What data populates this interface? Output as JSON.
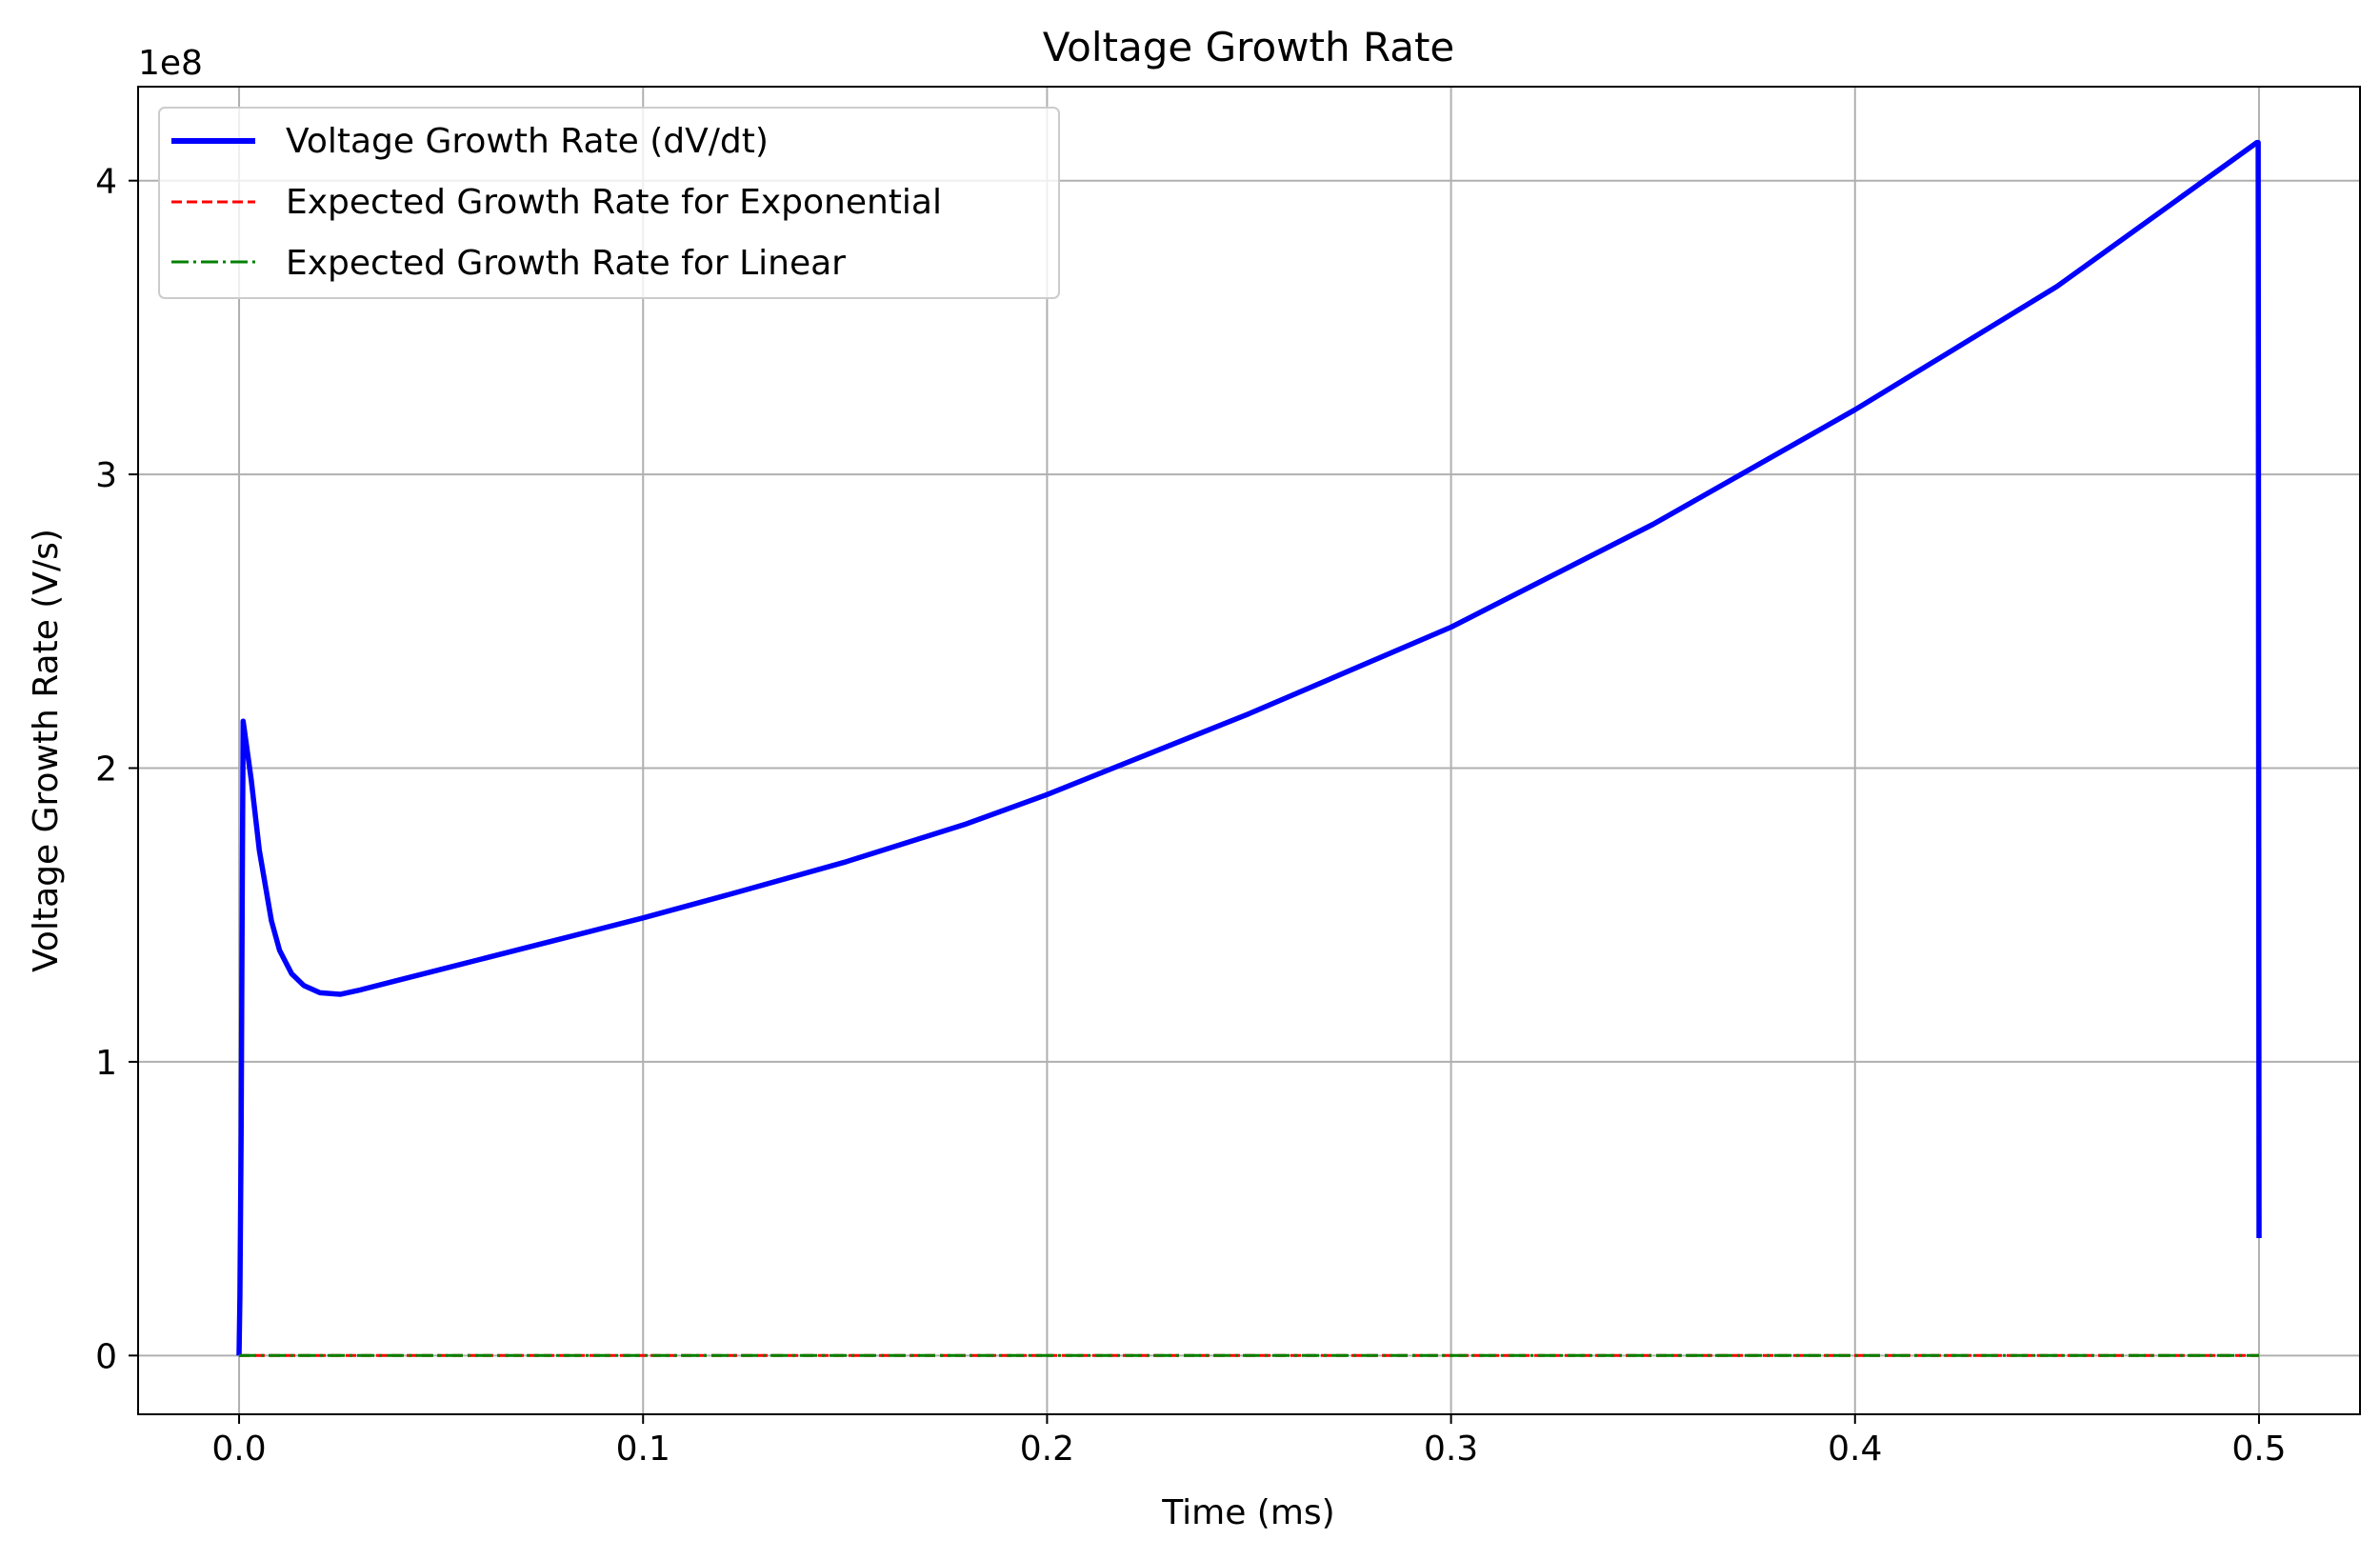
{
  "chart_data": {
    "type": "line",
    "title": "Voltage Growth Rate",
    "xlabel": "Time (ms)",
    "ylabel": "Voltage Growth Rate (V/s)",
    "y_offset_label": "1e8",
    "y_scale_factor": 100000000,
    "xlim": [
      -0.025,
      0.525
    ],
    "ylim": [
      -20000000,
      432000000
    ],
    "xticks": [
      0.0,
      0.1,
      0.2,
      0.3,
      0.4,
      0.5
    ],
    "xtick_labels": [
      "0.0",
      "0.1",
      "0.2",
      "0.3",
      "0.4",
      "0.5"
    ],
    "yticks": [
      0,
      100000000,
      200000000,
      300000000,
      400000000
    ],
    "ytick_labels": [
      "0",
      "1",
      "2",
      "3",
      "4"
    ],
    "grid": true,
    "legend_position": "upper-left",
    "series": [
      {
        "name": "Voltage Growth Rate (dV/dt)",
        "color": "#0000ff",
        "style": "solid",
        "x": [
          0.0,
          0.0002,
          0.0005,
          0.0008,
          0.001,
          0.003,
          0.005,
          0.008,
          0.01,
          0.013,
          0.016,
          0.02,
          0.025,
          0.03,
          0.04,
          0.05,
          0.06,
          0.08,
          0.1,
          0.12,
          0.15,
          0.18,
          0.2,
          0.25,
          0.3,
          0.35,
          0.4,
          0.45,
          0.4995,
          0.4998,
          0.5
        ],
        "y": [
          0,
          20000000,
          75000000,
          160000000,
          216000000,
          196000000,
          172000000,
          148000000,
          138000000,
          130000000,
          126000000,
          123500000,
          123000000,
          124500000,
          128000000,
          131500000,
          135000000,
          142000000,
          149000000,
          156500000,
          168000000,
          181000000,
          191000000,
          218500000,
          248000000,
          283000000,
          322000000,
          364000000,
          413000000,
          413000000,
          40000000
        ]
      },
      {
        "name": "Expected Growth Rate for Exponential",
        "color": "#ff0000",
        "style": "dashed",
        "x": [
          0.0,
          0.5
        ],
        "y": [
          0,
          0
        ]
      },
      {
        "name": "Expected Growth Rate for Linear",
        "color": "#008000",
        "style": "dashdot",
        "x": [
          0.0,
          0.5
        ],
        "y": [
          0,
          0
        ]
      }
    ]
  }
}
